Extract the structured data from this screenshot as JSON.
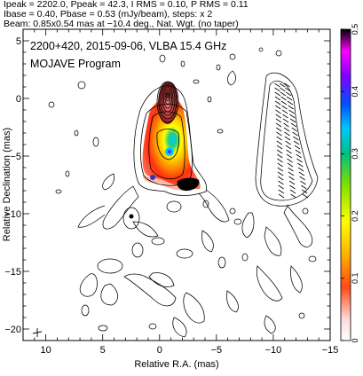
{
  "header": {
    "line1": "Ipeak = 2202.0, Ppeak = 42.3, I RMS = 0.10, P RMS = 0.11",
    "line2": "Ibase = 0.40, Pbase = 0.53 (mJy/beam), steps: x 2",
    "line3": "Beam: 0.85x0.54 mas at −10.4 deg., Nat. Wgt. (no taper)"
  },
  "chart_data": {
    "type": "contour",
    "annotation_line1": "2200+420, 2015-09-06, VLBA 15.4 GHz",
    "annotation_line2": "MOJAVE Program",
    "xlabel": "Relative R.A. (mas)",
    "ylabel": "Relative Declination (mas)",
    "xlim": [
      12,
      -15
    ],
    "ylim": [
      -21,
      6
    ],
    "xticks": [
      "10",
      "5",
      "0",
      "−5",
      "−10",
      "−15"
    ],
    "yticks": [
      "5",
      "0",
      "−5",
      "−10",
      "−15",
      "−20"
    ],
    "colorbar": {
      "ticks": [
        "0",
        "0.1",
        "0.2",
        "0.3",
        "0.4",
        "0.5"
      ],
      "range": [
        0,
        0.5
      ]
    },
    "total_intensity_peak_mJy_per_beam": 2202.0,
    "polarized_peak_mJy_per_beam": 42.3,
    "core_position_mas": [
      0,
      0
    ],
    "grid": false
  },
  "colors": {
    "polarization_high": "#000000",
    "polarization_mid": "#00c8ff",
    "polarization_low": "#ff1e00"
  }
}
